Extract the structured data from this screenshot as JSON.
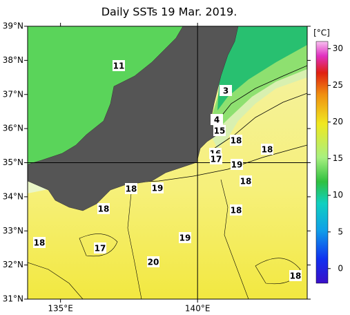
{
  "title": "Daily SSTs 19 Mar. 2019.",
  "map": {
    "lat_range": [
      31,
      39
    ],
    "lon_range": [
      133.8,
      144
    ],
    "lat_ticks": [
      {
        "value": 39,
        "label": "39°N"
      },
      {
        "value": 38,
        "label": "38°N"
      },
      {
        "value": 37,
        "label": "37°N"
      },
      {
        "value": 36,
        "label": "36°N"
      },
      {
        "value": 35,
        "label": "35°N"
      },
      {
        "value": 34,
        "label": "34°N"
      },
      {
        "value": 33,
        "label": "33°N"
      },
      {
        "value": 32,
        "label": "32°N"
      },
      {
        "value": 31,
        "label": "31°N"
      }
    ],
    "lon_ticks": [
      {
        "value": 135,
        "label": "135°E"
      },
      {
        "value": 140,
        "label": "140°E"
      }
    ],
    "grid_lat": [
      35
    ],
    "grid_lon": [
      140
    ],
    "contour_labels": [
      "11",
      "3",
      "4",
      "15",
      "18",
      "18",
      "16",
      "17",
      "19",
      "18",
      "18",
      "19",
      "18",
      "18",
      "19",
      "18",
      "17",
      "20",
      "18"
    ]
  },
  "colorbar": {
    "unit": "[°C]",
    "range": [
      -2,
      31
    ],
    "ticks": [
      0,
      5,
      10,
      15,
      20,
      25,
      30
    ]
  }
}
